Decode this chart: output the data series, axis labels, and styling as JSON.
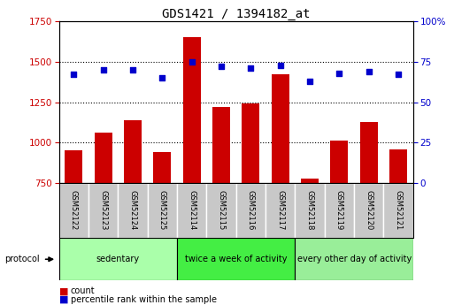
{
  "title": "GDS1421 / 1394182_at",
  "samples": [
    "GSM52122",
    "GSM52123",
    "GSM52124",
    "GSM52125",
    "GSM52114",
    "GSM52115",
    "GSM52116",
    "GSM52117",
    "GSM52118",
    "GSM52119",
    "GSM52120",
    "GSM52121"
  ],
  "counts": [
    950,
    1060,
    1140,
    940,
    1650,
    1220,
    1240,
    1420,
    780,
    1010,
    1130,
    960
  ],
  "percentiles": [
    67,
    70,
    70,
    65,
    75,
    72,
    71,
    73,
    63,
    68,
    69,
    67
  ],
  "ylim_left": [
    750,
    1750
  ],
  "ylim_right": [
    0,
    100
  ],
  "yticks_left": [
    750,
    1000,
    1250,
    1500,
    1750
  ],
  "yticks_right": [
    0,
    25,
    50,
    75,
    100
  ],
  "groups": [
    {
      "label": "sedentary",
      "start": 0,
      "end": 4,
      "color": "#aaffaa"
    },
    {
      "label": "twice a week of activity",
      "start": 4,
      "end": 8,
      "color": "#44ee44"
    },
    {
      "label": "every other day of activity",
      "start": 8,
      "end": 12,
      "color": "#99ee99"
    }
  ],
  "bar_color": "#cc0000",
  "dot_color": "#0000cc",
  "grid_color": "#000000",
  "sample_box_color": "#c8c8c8",
  "title_fontsize": 10,
  "tick_fontsize": 7.5,
  "label_fontsize": 7.5
}
